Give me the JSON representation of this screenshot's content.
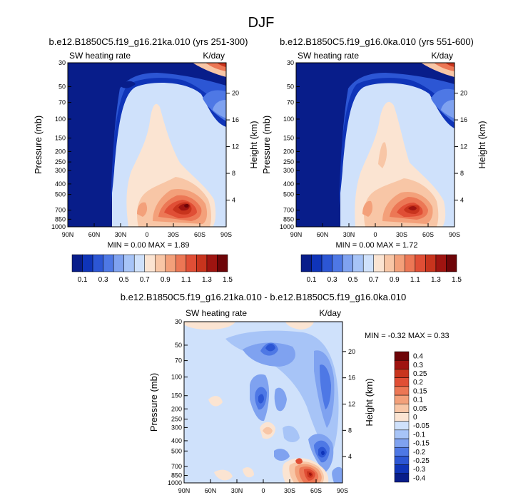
{
  "page_title": "DJF",
  "panels": [
    {
      "id": "top-left",
      "title": "b.e12.B1850C5.f19_g16.21ka.010 (yrs 251-300)",
      "left_label": "SW heating rate",
      "right_label": "K/day",
      "minmax_text": "MIN =   0.00   MAX =   1.89"
    },
    {
      "id": "top-right",
      "title": "b.e12.B1850C5.f19_g16.0ka.010 (yrs 551-600)",
      "left_label": "SW heating rate",
      "right_label": "K/day",
      "minmax_text": "MIN =   0.00   MAX =   1.72"
    },
    {
      "id": "bottom-diff",
      "title": "b.e12.B1850C5.f19_g16.21ka.010 - b.e12.B1850C5.f19_g16.0ka.010",
      "left_label": "SW heating rate",
      "right_label": "K/day",
      "minmax_text": "MIN = -0.32   MAX =   0.33"
    }
  ],
  "chart_data": [
    {
      "type": "heatmap",
      "panel": "top-left",
      "title": "b.e12.B1850C5.f19_g16.21ka.010 (yrs 251-300)",
      "xlabel": "",
      "ylabel": "Pressure (mb)",
      "y2label": "Height (km)",
      "x_ticks": [
        "90N",
        "60N",
        "30N",
        "0",
        "30S",
        "60S",
        "90S"
      ],
      "y_ticks": [
        "30",
        "50",
        "70",
        "100",
        "150",
        "200",
        "250",
        "300",
        "400",
        "500",
        "700",
        "850",
        "1000"
      ],
      "y2_ticks": [
        "20",
        "16",
        "12",
        "8",
        "4"
      ],
      "ylim": [
        1000,
        30
      ],
      "min": 0.0,
      "max": 1.89,
      "features": [
        {
          "name": "tropical heating maximum",
          "lat": -35,
          "p": 850,
          "value": 1.8
        },
        {
          "name": "upper stratospheric heating",
          "lat": -90,
          "p": 30,
          "value": 1.5
        }
      ]
    },
    {
      "type": "heatmap",
      "panel": "top-right",
      "title": "b.e12.B1850C5.f19_g16.0ka.010 (yrs 551-600)",
      "xlabel": "",
      "ylabel": "Pressure (mb)",
      "y2label": "Height (km)",
      "x_ticks": [
        "90N",
        "60N",
        "30N",
        "0",
        "30S",
        "60S",
        "90S"
      ],
      "y_ticks": [
        "30",
        "50",
        "70",
        "100",
        "150",
        "200",
        "250",
        "300",
        "400",
        "500",
        "700",
        "850",
        "1000"
      ],
      "y2_ticks": [
        "20",
        "16",
        "12",
        "8",
        "4"
      ],
      "ylim": [
        1000,
        30
      ],
      "min": 0.0,
      "max": 1.72,
      "features": [
        {
          "name": "tropical heating maximum",
          "lat": -40,
          "p": 850,
          "value": 1.65
        },
        {
          "name": "upper stratospheric heating",
          "lat": -90,
          "p": 30,
          "value": 1.4
        }
      ]
    },
    {
      "type": "heatmap",
      "panel": "bottom-diff",
      "title": "b.e12.B1850C5.f19_g16.21ka.010 - b.e12.B1850C5.f19_g16.0ka.010",
      "xlabel": "",
      "ylabel": "Pressure (mb)",
      "y2label": "Height (km)",
      "x_ticks": [
        "90N",
        "60N",
        "30N",
        "0",
        "30S",
        "60S",
        "90S"
      ],
      "y_ticks": [
        "30",
        "50",
        "70",
        "100",
        "150",
        "200",
        "250",
        "300",
        "400",
        "500",
        "700",
        "850",
        "1000"
      ],
      "y2_ticks": [
        "20",
        "16",
        "12",
        "8",
        "4"
      ],
      "ylim": [
        1000,
        30
      ],
      "min": -0.32,
      "max": 0.33,
      "features": [
        {
          "name": "positive difference maximum",
          "lat": -50,
          "p": 930,
          "value": 0.33
        },
        {
          "name": "negative difference minimum",
          "lat": -62,
          "p": 800,
          "value": -0.32
        },
        {
          "name": "negative mid-level anomaly",
          "lat": 2,
          "p": 500,
          "value": -0.28
        }
      ]
    }
  ],
  "colorbars": {
    "absolute": {
      "orientation": "horizontal",
      "colors": [
        "#081d8a",
        "#0f34b8",
        "#2c56d4",
        "#4e78e5",
        "#7fa2f0",
        "#a7c4f7",
        "#cfe1fb",
        "#fbe4d2",
        "#f8c6a6",
        "#f3a07a",
        "#ec7755",
        "#e04e35",
        "#c8341d",
        "#9f1410",
        "#6e0508"
      ],
      "labels": [
        "0.1",
        "0.3",
        "0.5",
        "0.7",
        "0.9",
        "1.1",
        "1.3",
        "1.5"
      ]
    },
    "difference": {
      "orientation": "vertical",
      "colors": [
        "#081d8a",
        "#0f34b8",
        "#2c56d4",
        "#4e78e5",
        "#7fa2f0",
        "#a7c4f7",
        "#cfe1fb",
        "#fbe4d2",
        "#f8c6a6",
        "#f3a07a",
        "#ec7755",
        "#e04e35",
        "#c8341d",
        "#9f1410",
        "#6e0508"
      ],
      "labels": [
        "-0.4",
        "-0.3",
        "-0.25",
        "-0.2",
        "-0.15",
        "-0.1",
        "-0.05",
        "0",
        "0.05",
        "0.1",
        "0.15",
        "0.2",
        "0.25",
        "0.3",
        "0.4"
      ]
    }
  }
}
